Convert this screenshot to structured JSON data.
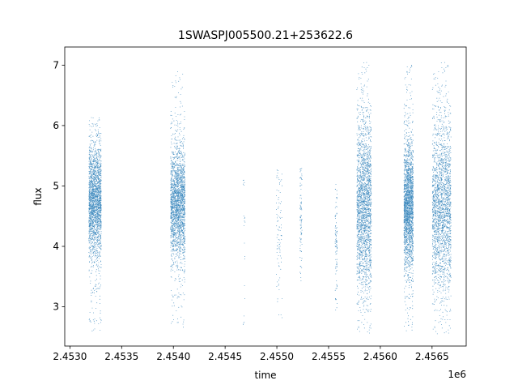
{
  "chart_data": {
    "type": "scatter",
    "title": "1SWASPJ005500.21+253622.6",
    "xlabel": "time",
    "ylabel": "flux",
    "x_offset_label": "1e6",
    "xlim": [
      2.45295,
      2.45683
    ],
    "ylim": [
      2.35,
      7.3
    ],
    "x_ticks": [
      2.453,
      2.4535,
      2.454,
      2.4545,
      2.455,
      2.4555,
      2.456,
      2.4565
    ],
    "x_tick_labels": [
      "2.4530",
      "2.4535",
      "2.4540",
      "2.4545",
      "2.4550",
      "2.4555",
      "2.4560",
      "2.4565"
    ],
    "y_ticks": [
      3,
      4,
      5,
      6,
      7
    ],
    "y_tick_labels": [
      "3",
      "4",
      "5",
      "6",
      "7"
    ],
    "grid": false,
    "legend": "none",
    "marker_color": "#1f77b4",
    "series": [
      {
        "points_summary": "dense clusters of flux measurements at observing seasons",
        "clusters": [
          {
            "x_center": 2.45324,
            "x_width": 0.00012,
            "y_median": 4.75,
            "y_spread": 0.45,
            "y_min": 2.6,
            "y_max": 6.15,
            "density": "high"
          },
          {
            "x_center": 2.45404,
            "x_width": 0.00014,
            "y_median": 4.7,
            "y_spread": 0.45,
            "y_min": 2.65,
            "y_max": 6.9,
            "density": "high"
          },
          {
            "x_center": 2.45468,
            "x_width": 2e-05,
            "y_median": 4.3,
            "y_spread": 0.9,
            "y_min": 2.65,
            "y_max": 5.2,
            "density": "very-low"
          },
          {
            "x_center": 2.45502,
            "x_width": 6e-05,
            "y_median": 4.4,
            "y_spread": 0.6,
            "y_min": 2.75,
            "y_max": 5.3,
            "density": "low"
          },
          {
            "x_center": 2.45523,
            "x_width": 2e-05,
            "y_median": 4.6,
            "y_spread": 0.6,
            "y_min": 3.35,
            "y_max": 5.3,
            "density": "low"
          },
          {
            "x_center": 2.45557,
            "x_width": 2e-05,
            "y_median": 4.1,
            "y_spread": 0.55,
            "y_min": 2.95,
            "y_max": 5.15,
            "density": "low"
          },
          {
            "x_center": 2.45584,
            "x_width": 0.00014,
            "y_median": 4.65,
            "y_spread": 0.7,
            "y_min": 2.55,
            "y_max": 7.05,
            "density": "high"
          },
          {
            "x_center": 2.45627,
            "x_width": 9e-05,
            "y_median": 4.65,
            "y_spread": 0.5,
            "y_min": 2.6,
            "y_max": 7.05,
            "density": "high"
          },
          {
            "x_center": 2.45659,
            "x_width": 0.00018,
            "y_median": 4.65,
            "y_spread": 0.7,
            "y_min": 2.55,
            "y_max": 7.05,
            "density": "high"
          }
        ]
      }
    ]
  }
}
